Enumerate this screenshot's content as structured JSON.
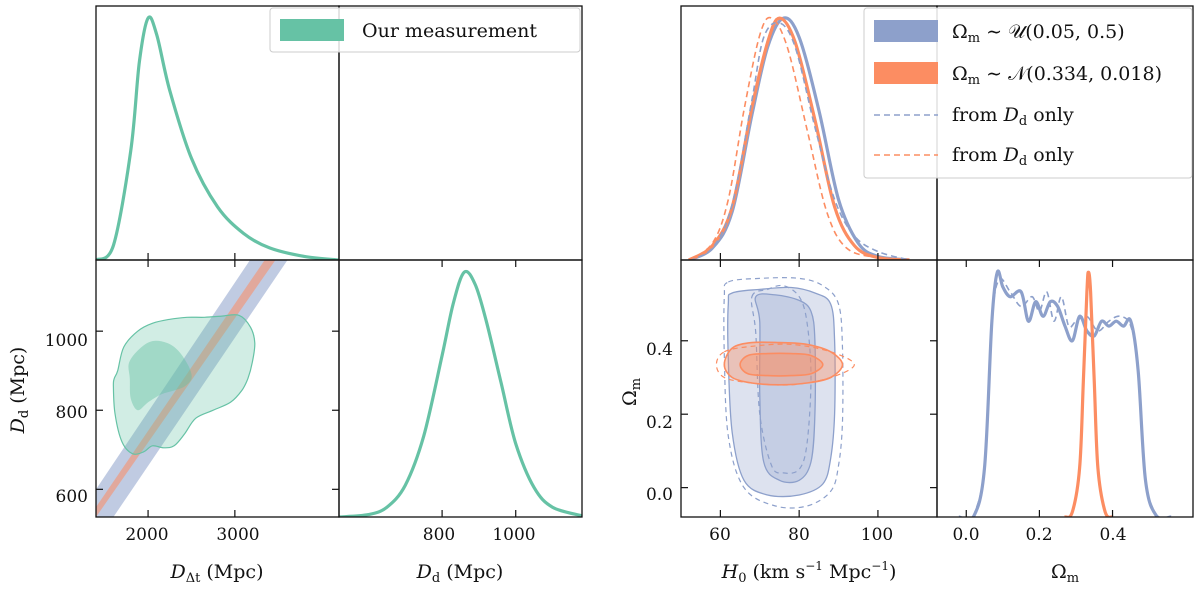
{
  "chart_data": [
    {
      "type": "line",
      "id": "A11",
      "title": "",
      "series": [
        {
          "name": "Our measurement",
          "color": "#66c2a5",
          "x": [
            1400,
            1600,
            1800,
            1900,
            2000,
            2100,
            2250,
            2500,
            2800,
            3100,
            3400,
            3800,
            4200
          ],
          "y": [
            0.0,
            0.06,
            0.45,
            0.82,
            1.0,
            0.93,
            0.7,
            0.42,
            0.22,
            0.11,
            0.05,
            0.015,
            0.0
          ]
        }
      ],
      "xlim": [
        1400,
        4200
      ],
      "ylim": [
        0,
        1.05
      ],
      "xlabel": "",
      "ylabel": ""
    },
    {
      "type": "scatter",
      "id": "A21",
      "subtype": "contour",
      "xlabel": "D_Δt (Mpc)",
      "ylabel": "D_d (Mpc)",
      "xlim": [
        1400,
        4200
      ],
      "ylim": [
        530,
        1180
      ],
      "x_ticks": [
        2000,
        3000
      ],
      "y_ticks": [
        600,
        800,
        1000
      ],
      "contours": [
        {
          "name": "Our measurement 95%",
          "color": "#66c2a5",
          "x": [
            1650,
            1720,
            1880,
            2050,
            2250,
            2450,
            2650,
            2850,
            3050,
            3180,
            3230,
            3200,
            3150,
            3080,
            2950,
            2750,
            2550,
            2420,
            2300,
            2180,
            2050,
            1950,
            1820,
            1700,
            1620,
            1600,
            1610
          ],
          "y": [
            900,
            960,
            1000,
            1020,
            1030,
            1035,
            1035,
            1038,
            1040,
            1010,
            970,
            920,
            880,
            850,
            820,
            800,
            780,
            740,
            710,
            705,
            710,
            695,
            690,
            720,
            790,
            860,
            880
          ]
        },
        {
          "name": "Our measurement 68%",
          "color": "#66c2a5",
          "x": [
            1780,
            1900,
            2050,
            2220,
            2350,
            2470,
            2500,
            2420,
            2300,
            2150,
            2000,
            1880,
            1800,
            1790
          ],
          "y": [
            920,
            955,
            975,
            970,
            950,
            910,
            880,
            860,
            850,
            840,
            820,
            800,
            830,
            880
          ]
        }
      ],
      "bands": [
        {
          "name": "Ω_m ~ U(0.05,0.5)",
          "color": "#8da0cb",
          "x": [
            1400,
            4200
          ],
          "y_lower": [
            465,
            1372
          ],
          "y_upper": [
            600,
            1515
          ]
        },
        {
          "name": "Ω_m ~ N(0.334,0.018)",
          "color": "#fc8d62",
          "x": [
            1400,
            4200
          ],
          "y_lower": [
            530,
            1410
          ],
          "y_upper": [
            555,
            1455
          ]
        }
      ]
    },
    {
      "type": "line",
      "id": "A22",
      "xlabel": "D_d (Mpc)",
      "xlim": [
        520,
        1180
      ],
      "ylim": [
        0,
        1.05
      ],
      "x_ticks": [
        800,
        1000
      ],
      "series": [
        {
          "name": "Our measurement",
          "color": "#66c2a5",
          "x": [
            520,
            600,
            650,
            700,
            750,
            800,
            830,
            860,
            890,
            920,
            960,
            1000,
            1050,
            1100,
            1180
          ],
          "y": [
            0.0,
            0.01,
            0.04,
            0.13,
            0.33,
            0.66,
            0.87,
            1.0,
            0.95,
            0.8,
            0.55,
            0.3,
            0.12,
            0.04,
            0.005
          ]
        }
      ]
    },
    {
      "type": "line",
      "id": "B11",
      "xlim": [
        50,
        115
      ],
      "ylim": [
        0,
        1.05
      ],
      "legend": "top-right",
      "legend_entries": [
        {
          "label": "Ω_m ~ U(0.05, 0.5)",
          "color": "#8da0cb",
          "style": "patch"
        },
        {
          "label": "Ω_m ~ N(0.334, 0.018)",
          "color": "#fc8d62",
          "style": "patch"
        },
        {
          "label": "from D_d only",
          "color": "#8da0cb",
          "style": "dashed"
        },
        {
          "label": "from D_d only",
          "color": "#fc8d62",
          "style": "dashed"
        }
      ],
      "series": [
        {
          "name": "U solid",
          "color": "#8da0cb",
          "dash": false,
          "x": [
            52,
            58,
            63,
            68,
            72,
            76,
            80,
            85,
            90,
            95,
            100,
            108
          ],
          "y": [
            0.0,
            0.05,
            0.2,
            0.6,
            0.88,
            1.0,
            0.92,
            0.62,
            0.25,
            0.07,
            0.015,
            0.0
          ]
        },
        {
          "name": "N solid",
          "color": "#fc8d62",
          "dash": false,
          "x": [
            52,
            58,
            63,
            68,
            72,
            75,
            79,
            84,
            89,
            94,
            100,
            108
          ],
          "y": [
            0.0,
            0.06,
            0.22,
            0.63,
            0.9,
            1.0,
            0.9,
            0.58,
            0.22,
            0.06,
            0.01,
            0.0
          ]
        },
        {
          "name": "U dashed",
          "color": "#8da0cb",
          "dash": true,
          "x": [
            52,
            58,
            63,
            68,
            71,
            75,
            79,
            84,
            89,
            94,
            100,
            108
          ],
          "y": [
            0.0,
            0.05,
            0.23,
            0.66,
            0.92,
            0.98,
            0.88,
            0.55,
            0.25,
            0.1,
            0.035,
            0.0
          ]
        },
        {
          "name": "N dashed",
          "color": "#fc8d62",
          "dash": true,
          "x": [
            52,
            58,
            62,
            66,
            70,
            73,
            77,
            82,
            87,
            92,
            100,
            108
          ],
          "y": [
            0.0,
            0.07,
            0.25,
            0.62,
            0.93,
            1.0,
            0.88,
            0.54,
            0.2,
            0.05,
            0.01,
            0.0
          ]
        }
      ]
    },
    {
      "type": "scatter",
      "id": "B21",
      "subtype": "contour",
      "xlabel": "H_0 (km s^-1 Mpc^-1)",
      "ylabel": "Ω_m",
      "xlim": [
        50,
        115
      ],
      "ylim": [
        -0.08,
        0.62
      ],
      "x_ticks": [
        60,
        80,
        100
      ],
      "y_ticks": [
        0.0,
        0.2,
        0.4
      ],
      "contours": [
        {
          "name": "U 95%",
          "color": "#8da0cb",
          "style": "solid",
          "x": [
            63,
            70,
            78,
            84,
            88,
            89,
            89,
            88,
            86,
            80,
            72,
            66,
            63,
            62,
            62
          ],
          "y": [
            0.53,
            0.54,
            0.545,
            0.53,
            0.5,
            0.4,
            0.2,
            0.08,
            0.01,
            -0.02,
            -0.02,
            0.02,
            0.15,
            0.35,
            0.5
          ]
        },
        {
          "name": "U 68%",
          "color": "#8da0cb",
          "style": "solid",
          "x": [
            69,
            74,
            80,
            83,
            84,
            84,
            83,
            80,
            75,
            71,
            70,
            70
          ],
          "y": [
            0.52,
            0.525,
            0.51,
            0.48,
            0.4,
            0.2,
            0.07,
            0.02,
            0.02,
            0.07,
            0.25,
            0.45
          ]
        },
        {
          "name": "U dashed 95%",
          "color": "#8da0cb",
          "style": "dashed",
          "x": [
            62,
            70,
            80,
            86,
            90,
            91,
            91,
            90,
            88,
            82,
            74,
            66,
            62,
            61,
            61
          ],
          "y": [
            0.56,
            0.57,
            0.57,
            0.55,
            0.5,
            0.38,
            0.18,
            0.06,
            -0.01,
            -0.05,
            -0.05,
            0.0,
            0.14,
            0.36,
            0.52
          ]
        },
        {
          "name": "U dashed 68%",
          "color": "#8da0cb",
          "style": "dashed",
          "x": [
            68,
            72,
            76,
            80,
            82,
            83,
            82,
            80,
            76,
            73,
            70,
            69
          ],
          "y": [
            0.52,
            0.54,
            0.55,
            0.52,
            0.45,
            0.3,
            0.12,
            0.05,
            0.04,
            0.06,
            0.2,
            0.42
          ]
        },
        {
          "name": "N 95%",
          "color": "#fc8d62",
          "style": "solid",
          "fill": true,
          "x": [
            63,
            68,
            75,
            82,
            88,
            91,
            88,
            82,
            75,
            68,
            63,
            61
          ],
          "y": [
            0.38,
            0.395,
            0.395,
            0.39,
            0.37,
            0.335,
            0.3,
            0.285,
            0.28,
            0.285,
            0.3,
            0.335
          ]
        },
        {
          "name": "N 68%",
          "color": "#fc8d62",
          "style": "solid",
          "fill": true,
          "x": [
            67,
            72,
            78,
            83,
            86,
            83,
            78,
            72,
            67,
            65
          ],
          "y": [
            0.36,
            0.365,
            0.365,
            0.36,
            0.335,
            0.31,
            0.305,
            0.305,
            0.31,
            0.335
          ]
        },
        {
          "name": "N dashed 95%",
          "color": "#fc8d62",
          "style": "dashed",
          "x": [
            61,
            68,
            78,
            88,
            94,
            88,
            78,
            68,
            61,
            59
          ],
          "y": [
            0.37,
            0.385,
            0.39,
            0.37,
            0.335,
            0.3,
            0.28,
            0.285,
            0.3,
            0.335
          ]
        }
      ]
    },
    {
      "type": "line",
      "id": "B22",
      "xlabel": "Ω_m",
      "xlim": [
        -0.08,
        0.62
      ],
      "ylim": [
        0,
        1.05
      ],
      "x_ticks": [
        0.0,
        0.2,
        0.4
      ],
      "series": [
        {
          "name": "U solid",
          "color": "#8da0cb",
          "dash": false,
          "x": [
            -0.02,
            0.02,
            0.05,
            0.07,
            0.085,
            0.1,
            0.12,
            0.15,
            0.17,
            0.19,
            0.21,
            0.23,
            0.25,
            0.27,
            0.29,
            0.31,
            0.33,
            0.35,
            0.37,
            0.39,
            0.41,
            0.43,
            0.45,
            0.47,
            0.49,
            0.52,
            0.56
          ],
          "y": [
            0.0,
            0.002,
            0.2,
            0.8,
            1.0,
            0.94,
            0.9,
            0.92,
            0.8,
            0.88,
            0.82,
            0.88,
            0.86,
            0.78,
            0.72,
            0.82,
            0.76,
            0.74,
            0.8,
            0.78,
            0.8,
            0.78,
            0.8,
            0.6,
            0.15,
            0.005,
            0.0
          ]
        },
        {
          "name": "U dashed",
          "color": "#8da0cb",
          "dash": true,
          "x": [
            0.02,
            0.05,
            0.07,
            0.09,
            0.12,
            0.15,
            0.18,
            0.2,
            0.22,
            0.24,
            0.26,
            0.28,
            0.3,
            0.33,
            0.36,
            0.39,
            0.42,
            0.45,
            0.47,
            0.49,
            0.52
          ],
          "y": [
            0.002,
            0.2,
            0.8,
            0.97,
            0.92,
            0.86,
            0.9,
            0.84,
            0.92,
            0.8,
            0.9,
            0.78,
            0.8,
            0.82,
            0.76,
            0.8,
            0.82,
            0.78,
            0.6,
            0.15,
            0.005
          ]
        },
        {
          "name": "N solid",
          "color": "#fc8d62",
          "dash": false,
          "x": [
            0.27,
            0.29,
            0.31,
            0.32,
            0.33,
            0.334,
            0.34,
            0.35,
            0.36,
            0.38,
            0.4
          ],
          "y": [
            0.0,
            0.02,
            0.2,
            0.55,
            0.92,
            1.0,
            0.92,
            0.55,
            0.2,
            0.02,
            0.0
          ]
        }
      ]
    }
  ],
  "labels": {
    "a21_xlabel": "D",
    "a21_xsub": "Δt",
    "a21_xunit": " (Mpc)",
    "a21_ylabel": "D",
    "a21_ysub": "d",
    "a21_yunit": " (Mpc)",
    "a22_xlabel": "D",
    "a22_xsub": "d",
    "a22_xunit": " (Mpc)",
    "b21_xlabel": "H",
    "b21_xsub": "0",
    "b21_xunit_a": " (km s",
    "b21_xexp1": "−1",
    "b21_xunit_b": " Mpc",
    "b21_xexp2": "−1",
    "b21_xunit_c": ")",
    "b21_ylabel": "Ω",
    "b21_ysub": "m",
    "b22_xlabel": "Ω",
    "b22_xsub": "m"
  },
  "legendA": {
    "label": "Our measurement"
  },
  "legendB": {
    "l1_pre": "Ω",
    "l1_sub": "m",
    "l1_post": " ∼ 𝒰(0.05, 0.5)",
    "l2_pre": "Ω",
    "l2_sub": "m",
    "l2_post": " ∼ 𝒩(0.334, 0.018)",
    "l3_pre": "from ",
    "l3_D": "D",
    "l3_sub": "d",
    "l3_post": " only",
    "l4_pre": "from ",
    "l4_D": "D",
    "l4_sub": "d",
    "l4_post": " only"
  },
  "ticks": {
    "a21_y": [
      "600",
      "800",
      "1000"
    ],
    "a21_x": [
      "2000",
      "3000"
    ],
    "a22_x": [
      "800",
      "1000"
    ],
    "b21_x": [
      "60",
      "80",
      "100"
    ],
    "b21_y": [
      "0.0",
      "0.2",
      "0.4"
    ],
    "b22_x": [
      "0.0",
      "0.2",
      "0.4"
    ]
  },
  "colors": {
    "green": "#66c2a5",
    "blue": "#8da0cb",
    "orange": "#fc8d62"
  }
}
